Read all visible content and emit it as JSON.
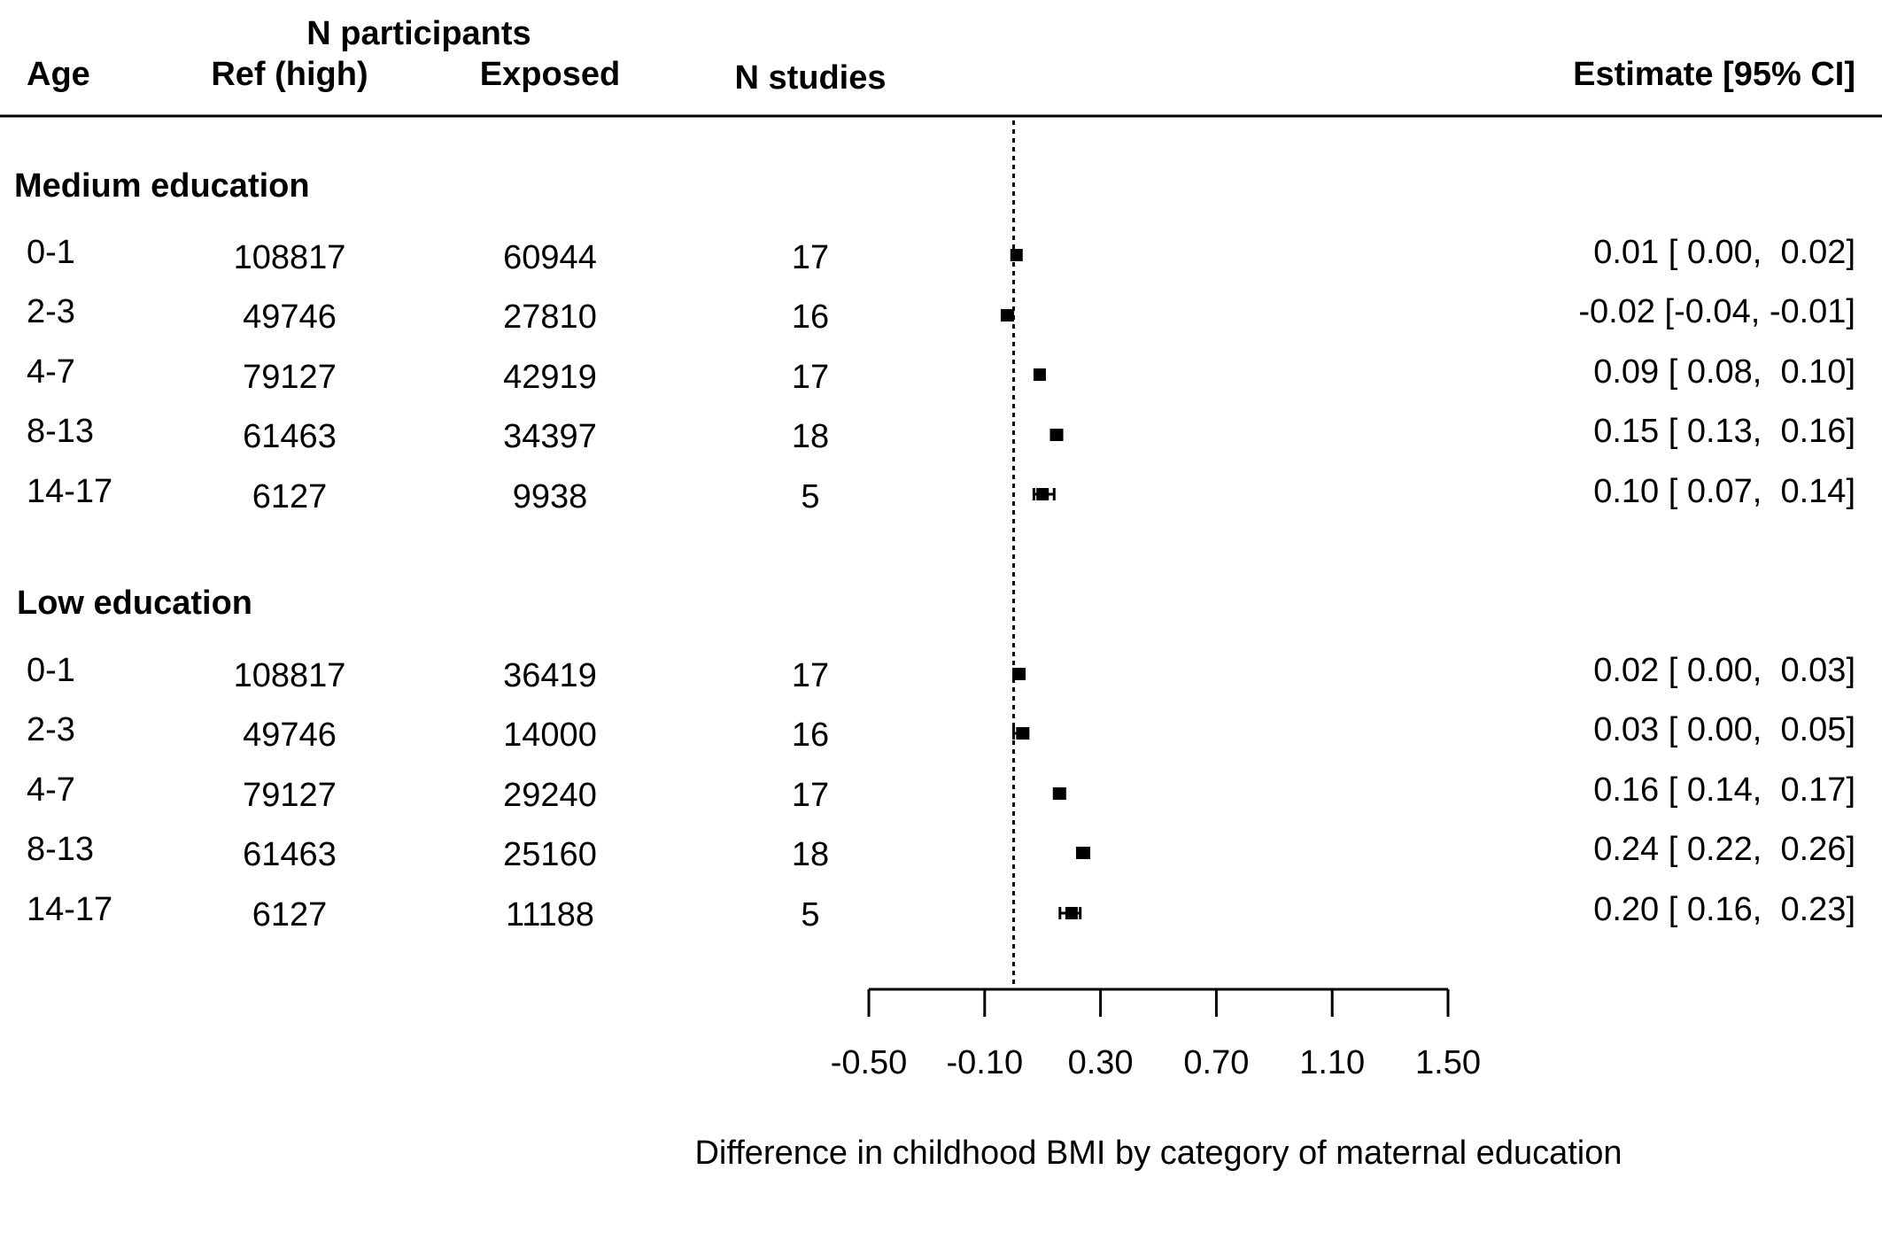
{
  "chart_data": {
    "type": "forest",
    "headers": {
      "n_participants": "N participants",
      "age": "Age",
      "ref": "Ref (high)",
      "exposed": "Exposed",
      "n_studies": "N studies",
      "estimate": "Estimate [95% CI]"
    },
    "groups": [
      {
        "label": "Medium education",
        "rows": [
          {
            "age": "0-1",
            "ref": "108817",
            "exposed": "60944",
            "n_studies": "17",
            "est": 0.01,
            "lo": 0.0,
            "hi": 0.02,
            "text": "0.01 [ 0.00,  0.02]"
          },
          {
            "age": "2-3",
            "ref": "49746",
            "exposed": "27810",
            "n_studies": "16",
            "est": -0.02,
            "lo": -0.04,
            "hi": -0.01,
            "text": "-0.02 [-0.04, -0.01]"
          },
          {
            "age": "4-7",
            "ref": "79127",
            "exposed": "42919",
            "n_studies": "17",
            "est": 0.09,
            "lo": 0.08,
            "hi": 0.1,
            "text": "0.09 [ 0.08,  0.10]"
          },
          {
            "age": "8-13",
            "ref": "61463",
            "exposed": "34397",
            "n_studies": "18",
            "est": 0.15,
            "lo": 0.13,
            "hi": 0.16,
            "text": "0.15 [ 0.13,  0.16]"
          },
          {
            "age": "14-17",
            "ref": "6127",
            "exposed": "9938",
            "n_studies": "5",
            "est": 0.1,
            "lo": 0.07,
            "hi": 0.14,
            "text": "0.10 [ 0.07,  0.14]"
          }
        ]
      },
      {
        "label": "Low education",
        "rows": [
          {
            "age": "0-1",
            "ref": "108817",
            "exposed": "36419",
            "n_studies": "17",
            "est": 0.02,
            "lo": 0.0,
            "hi": 0.03,
            "text": "0.02 [ 0.00,  0.03]"
          },
          {
            "age": "2-3",
            "ref": "49746",
            "exposed": "14000",
            "n_studies": "16",
            "est": 0.03,
            "lo": 0.0,
            "hi": 0.05,
            "text": "0.03 [ 0.00,  0.05]"
          },
          {
            "age": "4-7",
            "ref": "79127",
            "exposed": "29240",
            "n_studies": "17",
            "est": 0.16,
            "lo": 0.14,
            "hi": 0.17,
            "text": "0.16 [ 0.14,  0.17]"
          },
          {
            "age": "8-13",
            "ref": "61463",
            "exposed": "25160",
            "n_studies": "18",
            "est": 0.24,
            "lo": 0.22,
            "hi": 0.26,
            "text": "0.24 [ 0.22,  0.26]"
          },
          {
            "age": "14-17",
            "ref": "6127",
            "exposed": "11188",
            "n_studies": "5",
            "est": 0.2,
            "lo": 0.16,
            "hi": 0.23,
            "text": "0.20 [ 0.16,  0.23]"
          }
        ]
      }
    ],
    "x_ticks": [
      -0.5,
      -0.1,
      0.3,
      0.7,
      1.1,
      1.5
    ],
    "x_tick_labels": [
      "-0.50",
      "-0.10",
      "0.30",
      "0.70",
      "1.10",
      "1.50"
    ],
    "xlim": [
      -0.5,
      1.5
    ],
    "reference_line": 0,
    "xlabel": "Difference in childhood BMI by category of maternal education"
  }
}
